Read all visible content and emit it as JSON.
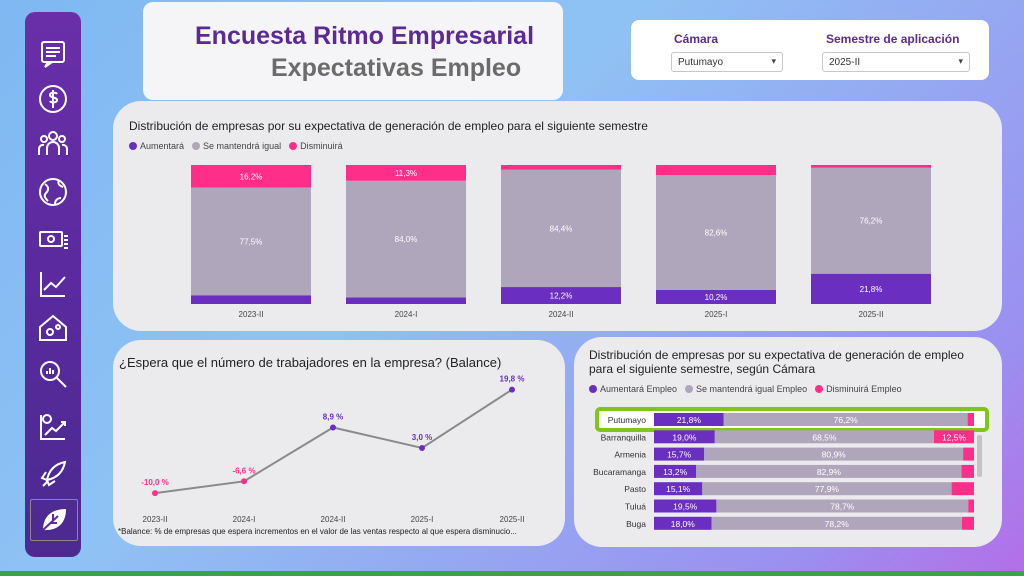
{
  "header": {
    "title": "Encuesta Ritmo Empresarial",
    "subtitle": "Expectativas Empleo"
  },
  "filters": {
    "camara_label": "Cámara",
    "camara_value": "Putumayo",
    "semestre_label": "Semestre de aplicación",
    "semestre_value": "2025-II"
  },
  "sidebar": {
    "items": [
      "report-icon",
      "dollar-icon",
      "people-icon",
      "globe-icon",
      "money-icon",
      "trend-icon",
      "house-gear-icon",
      "search-chart-icon",
      "growth-chart-icon",
      "rocket-icon",
      "leaf-icon"
    ]
  },
  "colors": {
    "aumentara": "#6a2ec0",
    "igual": "#b0a6bc",
    "disminuira": "#ff2e88",
    "line": "#8a8a8a",
    "accent": "#5b2a92",
    "highlight": "#7ec61a"
  },
  "chart_data": [
    {
      "type": "bar",
      "title": "Distribución de empresas por su expectativa de generación de empleo para el siguiente semestre",
      "legend": [
        "Aumentará",
        "Se mantendrá igual",
        "Disminuirá"
      ],
      "categories": [
        "2023-II",
        "2024-I",
        "2024-II",
        "2025-I",
        "2025-II"
      ],
      "series": [
        {
          "name": "Aumentará",
          "values": [
            6.3,
            4.7,
            12.2,
            10.2,
            21.8
          ],
          "labels": [
            "",
            "",
            "12,2%",
            "10,2%",
            "21,8%"
          ]
        },
        {
          "name": "Se mantendrá igual",
          "values": [
            77.5,
            84.0,
            84.4,
            82.6,
            76.2
          ],
          "labels": [
            "77,5%",
            "84,0%",
            "84,4%",
            "82,6%",
            "76,2%"
          ]
        },
        {
          "name": "Disminuirá",
          "values": [
            16.2,
            11.3,
            3.4,
            7.2,
            2.0
          ],
          "labels": [
            "16,2%",
            "11,3%",
            "",
            "",
            ""
          ]
        }
      ],
      "ylim": [
        0,
        100
      ]
    },
    {
      "type": "line",
      "title": "¿Espera que el número de trabajadores en la empresa? (Balance)",
      "categories": [
        "2023-II",
        "2024-I",
        "2024-II",
        "2025-I",
        "2025-II"
      ],
      "values": [
        -10.0,
        -6.6,
        8.9,
        3.0,
        19.8
      ],
      "labels": [
        "-10,0 %",
        "-6,6 %",
        "8,9 %",
        "3,0 %",
        "19,8 %"
      ],
      "ylim": [
        -14,
        22
      ],
      "footnote": "*Balance: % de empresas que espera incrementos en el valor de las ventas respecto al que espera disminucio..."
    },
    {
      "type": "bar",
      "title": "Distribución de empresas por su expectativa de generación de empleo para el siguiente semestre, según Cámara",
      "legend": [
        "Aumentará Empleo",
        "Se mantendrá igual Empleo",
        "Disminuirá Empleo"
      ],
      "categories": [
        "Putumayo",
        "Barranquilla",
        "Armenia",
        "Bucaramanga",
        "Pasto",
        "Tuluá",
        "Buga"
      ],
      "highlight": "Putumayo",
      "series": [
        {
          "name": "Aumentará Empleo",
          "values": [
            21.8,
            19.0,
            15.7,
            13.2,
            15.1,
            19.5,
            18.0
          ],
          "labels": [
            "21,8%",
            "19,0%",
            "15,7%",
            "13,2%",
            "15,1%",
            "19,5%",
            "18,0%"
          ]
        },
        {
          "name": "Se mantendrá igual Empleo",
          "values": [
            76.2,
            68.5,
            80.9,
            82.9,
            77.9,
            78.7,
            78.2
          ],
          "labels": [
            "76,2%",
            "68,5%",
            "80,9%",
            "82,9%",
            "77,9%",
            "78,7%",
            "78,2%"
          ]
        },
        {
          "name": "Disminuirá Empleo",
          "values": [
            2.0,
            12.5,
            3.4,
            3.9,
            7.0,
            1.8,
            3.8
          ],
          "labels": [
            "",
            "12,5%",
            "",
            "",
            "",
            "",
            ""
          ]
        }
      ],
      "xlim": [
        0,
        100
      ]
    }
  ]
}
